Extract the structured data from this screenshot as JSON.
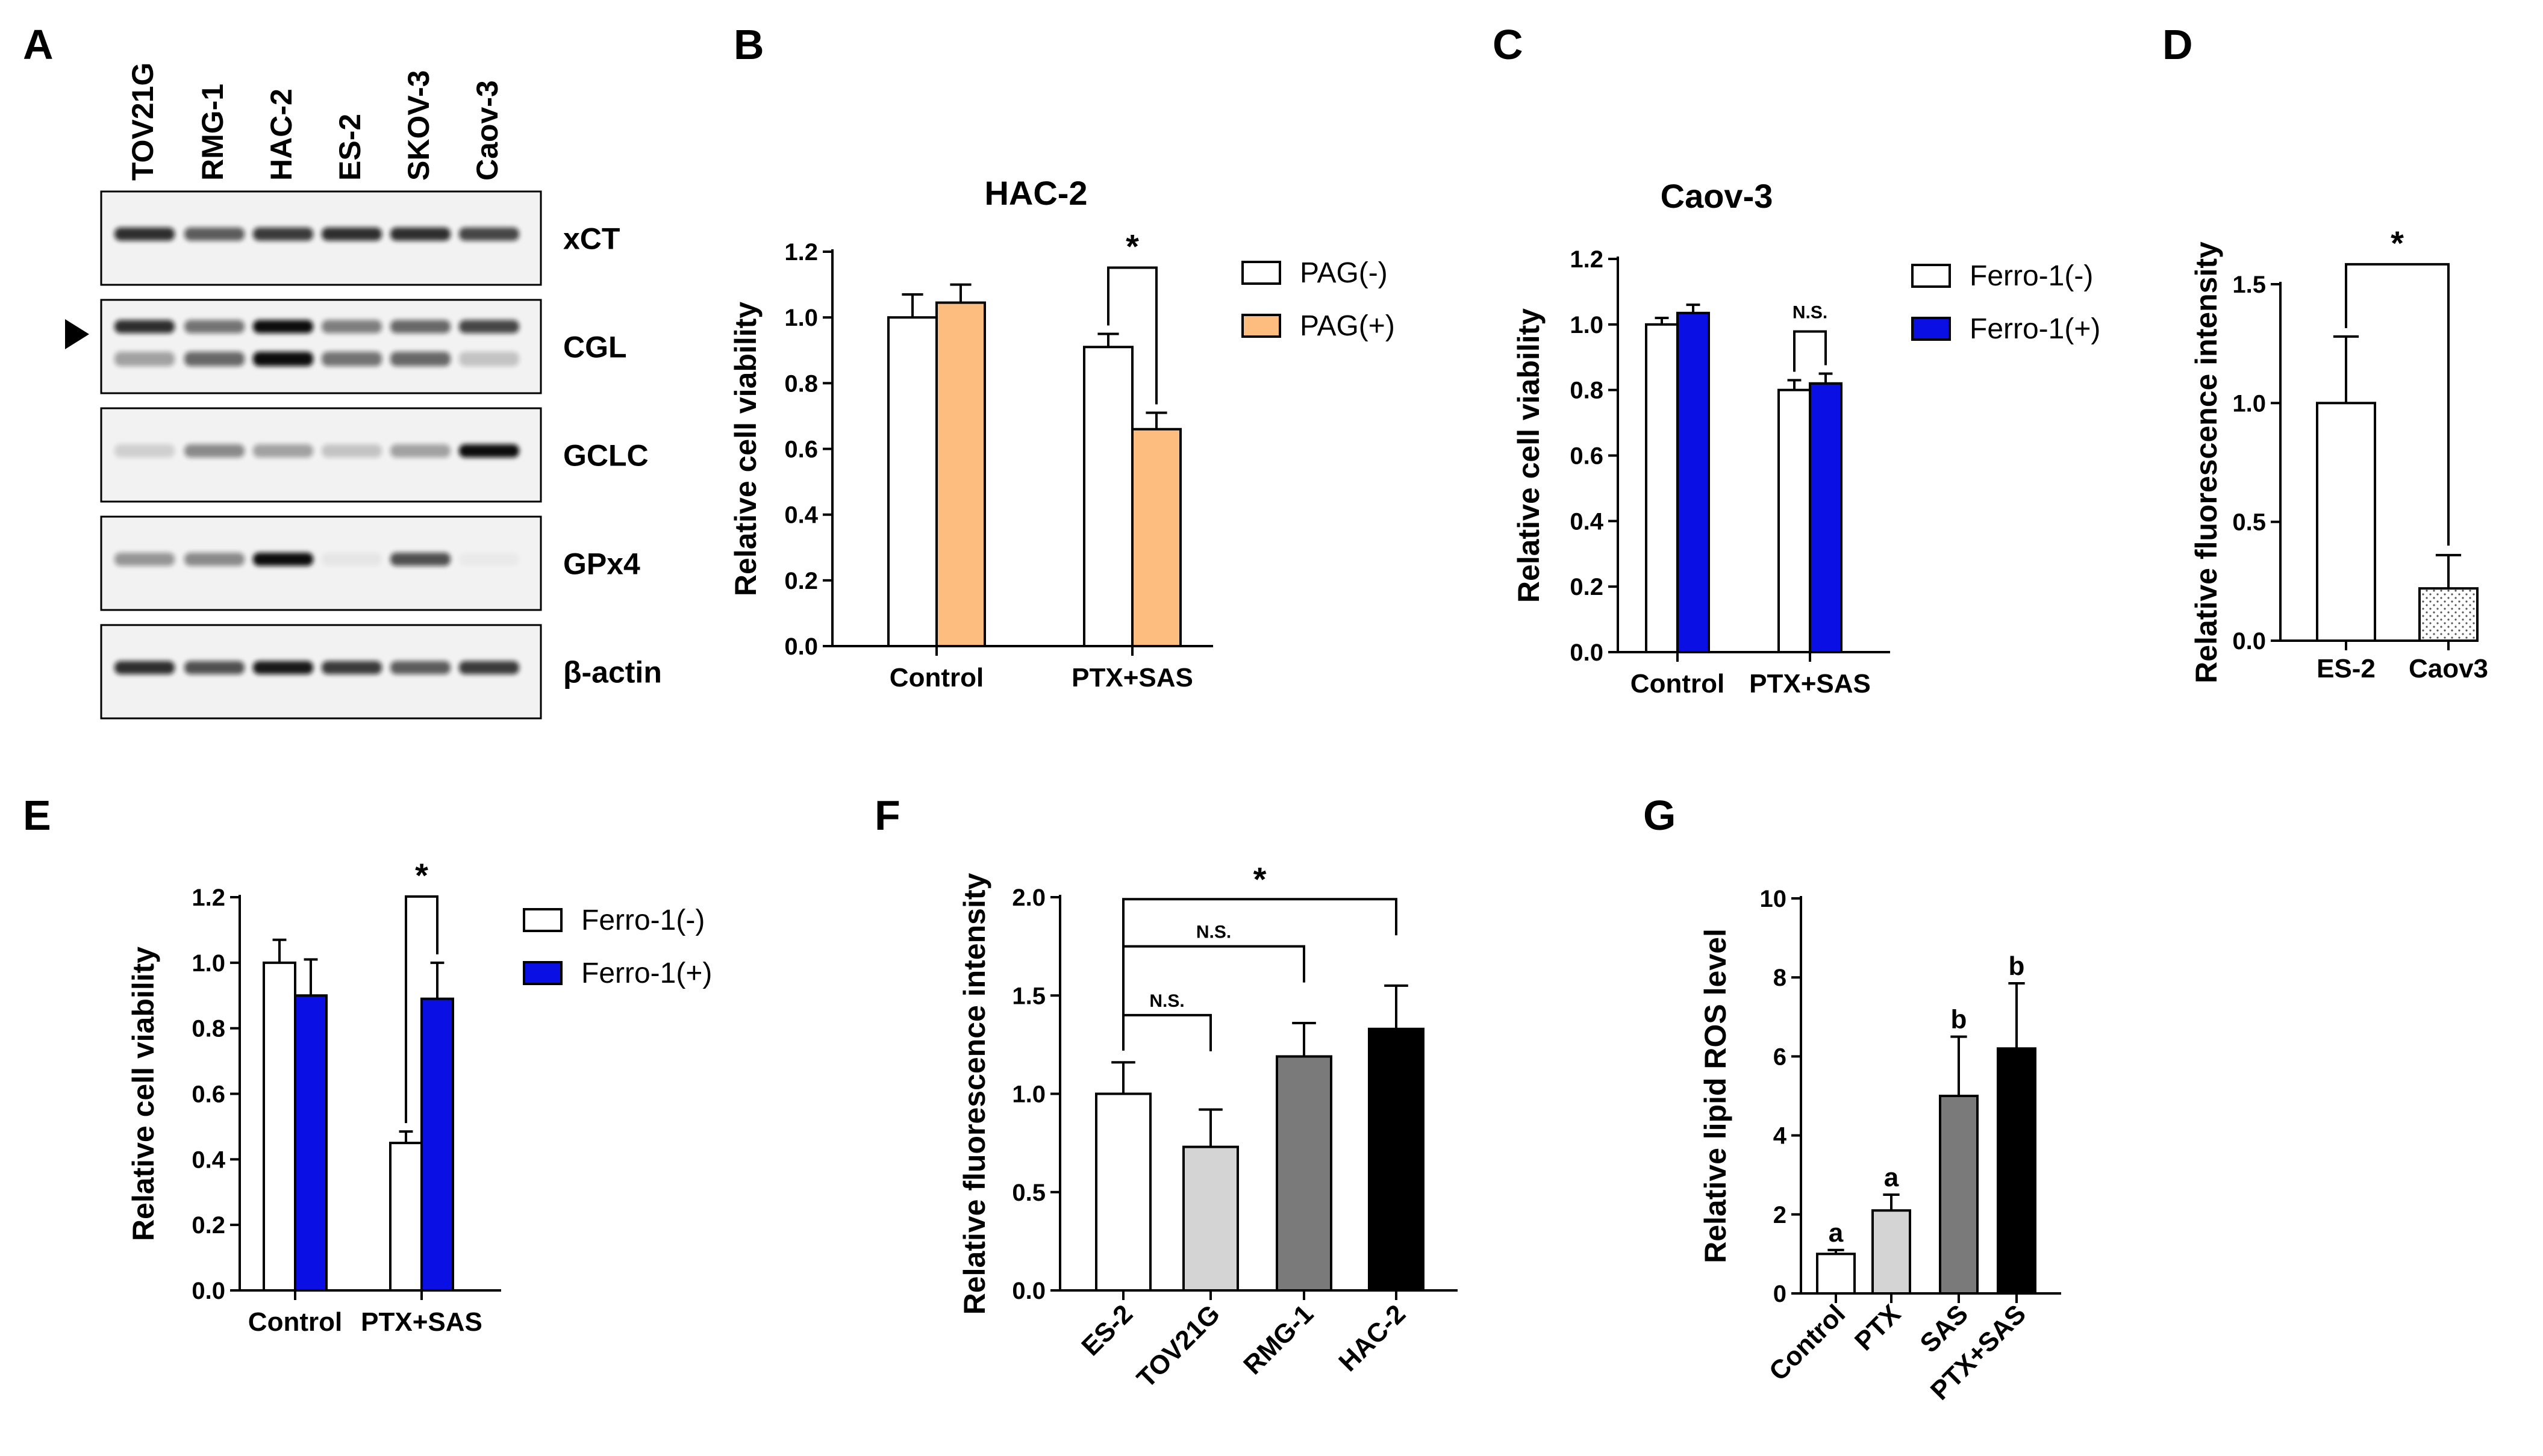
{
  "panels": {
    "A": "A",
    "B": "B",
    "C": "C",
    "D": "D",
    "E": "E",
    "F": "F",
    "G": "G"
  },
  "colors": {
    "orange": "#fdbd7f",
    "blue": "#0a10e3",
    "light_gray": "#d4d4d4",
    "dark_gray": "#7a7a7a",
    "black": "#000000",
    "white": "#ffffff"
  },
  "blot": {
    "cell_lines": [
      "TOV21G",
      "RMG-1",
      "HAC-2",
      "ES-2",
      "SKOV-3",
      "Caov-3"
    ],
    "proteins": [
      "xCT",
      "CGL",
      "GCLC",
      "GPx4",
      "β-actin"
    ],
    "band_intensity": [
      [
        0.85,
        0.65,
        0.8,
        0.85,
        0.85,
        0.75
      ],
      [
        0.85,
        0.55,
        1.0,
        0.5,
        0.6,
        0.75
      ],
      [
        0.15,
        0.45,
        0.35,
        0.2,
        0.35,
        1.0
      ],
      [
        0.4,
        0.45,
        1.0,
        0.05,
        0.7,
        0.02
      ],
      [
        0.85,
        0.7,
        0.95,
        0.8,
        0.65,
        0.8
      ]
    ]
  },
  "chart_data": [
    {
      "id": "B",
      "type": "bar",
      "title": "HAC-2",
      "ylabel": "Relative cell viability",
      "ylim": [
        0,
        1.2
      ],
      "yticks": [
        "0.0",
        "0.2",
        "0.4",
        "0.6",
        "0.8",
        "1.0",
        "1.2"
      ],
      "categories": [
        "Control",
        "PTX+SAS"
      ],
      "series": [
        {
          "name": "PAG(-)",
          "color": "white",
          "values": [
            1.0,
            0.91
          ],
          "errors": [
            0.07,
            0.04
          ]
        },
        {
          "name": "PAG(+)",
          "color": "orange",
          "values": [
            1.045,
            0.66
          ],
          "errors": [
            0.055,
            0.05
          ]
        }
      ],
      "annotations": [
        {
          "text": "*",
          "category": "PTX+SAS"
        }
      ],
      "legend": "right"
    },
    {
      "id": "C",
      "type": "bar",
      "title": "Caov-3",
      "ylabel": "Relative cell viability",
      "ylim": [
        0,
        1.2
      ],
      "yticks": [
        "0.0",
        "0.2",
        "0.4",
        "0.6",
        "0.8",
        "1.0",
        "1.2"
      ],
      "categories": [
        "Control",
        "PTX+SAS"
      ],
      "series": [
        {
          "name": "Ferro-1(-)",
          "color": "white",
          "values": [
            1.0,
            0.8
          ],
          "errors": [
            0.02,
            0.03
          ]
        },
        {
          "name": "Ferro-1(+)",
          "color": "blue",
          "values": [
            1.035,
            0.82
          ],
          "errors": [
            0.025,
            0.03
          ]
        }
      ],
      "annotations": [
        {
          "text": "N.S.",
          "category": "PTX+SAS"
        }
      ],
      "legend": "right"
    },
    {
      "id": "D",
      "type": "bar",
      "title": "",
      "ylabel": "Relative fluorescence intensity",
      "ylim": [
        0,
        1.5
      ],
      "yticks": [
        "0.0",
        "0.5",
        "1.0",
        "1.5"
      ],
      "categories": [
        "ES-2",
        "Caov3"
      ],
      "values": [
        1.0,
        0.22
      ],
      "errors": [
        0.28,
        0.14
      ],
      "fills": [
        "white",
        "dotted"
      ],
      "annotations": [
        {
          "text": "*"
        }
      ]
    },
    {
      "id": "E",
      "type": "bar",
      "title": "",
      "ylabel": "Relative cell viability",
      "ylim": [
        0,
        1.2
      ],
      "yticks": [
        "0.0",
        "0.2",
        "0.4",
        "0.6",
        "0.8",
        "1.0",
        "1.2"
      ],
      "categories": [
        "Control",
        "PTX+SAS"
      ],
      "series": [
        {
          "name": "Ferro-1(-)",
          "color": "white",
          "values": [
            1.0,
            0.45
          ],
          "errors": [
            0.07,
            0.035
          ]
        },
        {
          "name": "Ferro-1(+)",
          "color": "blue",
          "values": [
            0.9,
            0.89
          ],
          "errors": [
            0.11,
            0.11
          ]
        }
      ],
      "annotations": [
        {
          "text": "*",
          "category": "PTX+SAS"
        }
      ],
      "legend": "right"
    },
    {
      "id": "F",
      "type": "bar",
      "title": "",
      "ylabel": "Relative fluorescence intensity",
      "ylim": [
        0,
        2.0
      ],
      "yticks": [
        "0.0",
        "0.5",
        "1.0",
        "1.5",
        "2.0"
      ],
      "categories": [
        "ES-2",
        "TOV21G",
        "RMG-1",
        "HAC-2"
      ],
      "values": [
        1.0,
        0.73,
        1.19,
        1.33
      ],
      "errors": [
        0.16,
        0.19,
        0.17,
        0.22
      ],
      "fills": [
        "white",
        "light_gray",
        "dark_gray",
        "black"
      ],
      "annotations": [
        {
          "text": "N.S.",
          "from": "ES-2",
          "to": "TOV21G"
        },
        {
          "text": "N.S.",
          "from": "ES-2",
          "to": "RMG-1"
        },
        {
          "text": "*",
          "from": "ES-2",
          "to": "HAC-2"
        }
      ]
    },
    {
      "id": "G",
      "type": "bar",
      "title": "",
      "ylabel": "Relative lipid ROS level",
      "ylim": [
        0,
        10
      ],
      "yticks": [
        "0",
        "2",
        "4",
        "6",
        "8",
        "10"
      ],
      "categories": [
        "Control",
        "PTX",
        "SAS",
        "PTX+SAS"
      ],
      "values": [
        1.0,
        2.1,
        5.0,
        6.2
      ],
      "errors": [
        0.1,
        0.4,
        1.5,
        1.65
      ],
      "fills": [
        "white",
        "light_gray",
        "dark_gray",
        "black"
      ],
      "annotations": [
        {
          "text": "a",
          "category": "Control"
        },
        {
          "text": "a",
          "category": "PTX"
        },
        {
          "text": "b",
          "category": "SAS"
        },
        {
          "text": "b",
          "category": "PTX+SAS"
        }
      ]
    }
  ]
}
